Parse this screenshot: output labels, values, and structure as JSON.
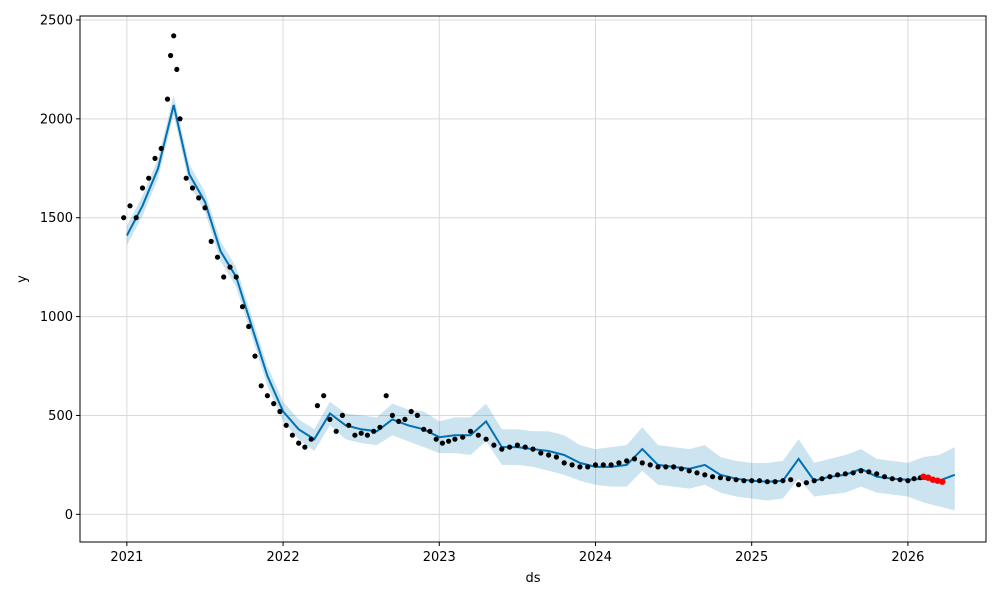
{
  "chart_data": {
    "type": "line",
    "xlabel": "ds",
    "ylabel": "y",
    "xlim": [
      2020.7,
      2026.5
    ],
    "ylim": [
      -140,
      2520
    ],
    "x_ticks": [
      2021,
      2022,
      2023,
      2024,
      2025,
      2026
    ],
    "x_tick_labels": [
      "2021",
      "2022",
      "2023",
      "2024",
      "2025",
      "2026"
    ],
    "y_ticks": [
      0,
      500,
      1000,
      1500,
      2000,
      2500
    ],
    "y_tick_labels": [
      "0",
      "500",
      "1000",
      "1500",
      "2000",
      "2500"
    ],
    "grid": true,
    "colors": {
      "forecast_line": "#0072B2",
      "uncertainty_band": "#0072B2",
      "observed_points": "#000000",
      "highlight_points": "#ff0000",
      "grid": "#d9d9d9"
    },
    "forecast": {
      "x": [
        2021.0,
        2021.1,
        2021.2,
        2021.3,
        2021.4,
        2021.5,
        2021.6,
        2021.7,
        2021.8,
        2021.9,
        2022.0,
        2022.1,
        2022.2,
        2022.3,
        2022.4,
        2022.5,
        2022.6,
        2022.7,
        2022.8,
        2022.9,
        2023.0,
        2023.1,
        2023.2,
        2023.3,
        2023.4,
        2023.5,
        2023.6,
        2023.7,
        2023.8,
        2023.9,
        2024.0,
        2024.1,
        2024.2,
        2024.3,
        2024.4,
        2024.5,
        2024.6,
        2024.7,
        2024.8,
        2024.9,
        2025.0,
        2025.1,
        2025.2,
        2025.3,
        2025.4,
        2025.5,
        2025.6,
        2025.7,
        2025.8,
        2025.9,
        2026.0,
        2026.1,
        2026.2,
        2026.3
      ],
      "yhat": [
        1410,
        1560,
        1750,
        2070,
        1720,
        1580,
        1330,
        1200,
        950,
        700,
        520,
        430,
        380,
        510,
        450,
        430,
        420,
        480,
        450,
        430,
        390,
        400,
        400,
        470,
        340,
        340,
        330,
        320,
        300,
        260,
        240,
        240,
        250,
        330,
        250,
        240,
        230,
        250,
        200,
        180,
        170,
        165,
        170,
        280,
        170,
        190,
        200,
        230,
        190,
        180,
        175,
        180,
        170,
        200
      ],
      "yhat_lower": [
        1360,
        1510,
        1700,
        2020,
        1670,
        1530,
        1280,
        1150,
        900,
        650,
        470,
        380,
        320,
        450,
        380,
        360,
        350,
        400,
        370,
        340,
        310,
        310,
        300,
        370,
        250,
        250,
        240,
        220,
        200,
        170,
        150,
        140,
        140,
        220,
        150,
        140,
        130,
        150,
        110,
        90,
        80,
        70,
        80,
        180,
        90,
        100,
        110,
        140,
        110,
        100,
        90,
        60,
        40,
        20
      ],
      "yhat_upper": [
        1460,
        1610,
        1800,
        2120,
        1770,
        1630,
        1380,
        1250,
        1000,
        750,
        570,
        480,
        430,
        570,
        510,
        500,
        490,
        560,
        530,
        520,
        470,
        490,
        490,
        560,
        430,
        430,
        420,
        420,
        400,
        350,
        330,
        340,
        350,
        440,
        350,
        340,
        330,
        350,
        290,
        270,
        260,
        260,
        270,
        380,
        260,
        280,
        300,
        330,
        280,
        270,
        260,
        290,
        300,
        340
      ]
    },
    "observed": {
      "x": [
        2020.98,
        2021.02,
        2021.06,
        2021.1,
        2021.14,
        2021.18,
        2021.22,
        2021.26,
        2021.28,
        2021.3,
        2021.32,
        2021.34,
        2021.38,
        2021.42,
        2021.46,
        2021.5,
        2021.54,
        2021.58,
        2021.62,
        2021.66,
        2021.7,
        2021.74,
        2021.78,
        2021.82,
        2021.86,
        2021.9,
        2021.94,
        2021.98,
        2022.02,
        2022.06,
        2022.1,
        2022.14,
        2022.18,
        2022.22,
        2022.26,
        2022.3,
        2022.34,
        2022.38,
        2022.42,
        2022.46,
        2022.5,
        2022.54,
        2022.58,
        2022.62,
        2022.66,
        2022.7,
        2022.74,
        2022.78,
        2022.82,
        2022.86,
        2022.9,
        2022.94,
        2022.98,
        2023.02,
        2023.06,
        2023.1,
        2023.15,
        2023.2,
        2023.25,
        2023.3,
        2023.35,
        2023.4,
        2023.45,
        2023.5,
        2023.55,
        2023.6,
        2023.65,
        2023.7,
        2023.75,
        2023.8,
        2023.85,
        2023.9,
        2023.95,
        2024.0,
        2024.05,
        2024.1,
        2024.15,
        2024.2,
        2024.25,
        2024.3,
        2024.35,
        2024.4,
        2024.45,
        2024.5,
        2024.55,
        2024.6,
        2024.65,
        2024.7,
        2024.75,
        2024.8,
        2024.85,
        2024.9,
        2024.95,
        2025.0,
        2025.05,
        2025.1,
        2025.15,
        2025.2,
        2025.25,
        2025.3,
        2025.35,
        2025.4,
        2025.45,
        2025.5,
        2025.55,
        2025.6,
        2025.65,
        2025.7,
        2025.75,
        2025.8,
        2025.85,
        2025.9,
        2025.95,
        2026.0,
        2026.04,
        2026.08
      ],
      "y": [
        1500,
        1560,
        1500,
        1650,
        1700,
        1800,
        1850,
        2100,
        2320,
        2420,
        2250,
        2000,
        1700,
        1650,
        1600,
        1550,
        1380,
        1300,
        1200,
        1250,
        1200,
        1050,
        950,
        800,
        650,
        600,
        560,
        520,
        450,
        400,
        360,
        340,
        380,
        550,
        600,
        480,
        420,
        500,
        450,
        400,
        410,
        400,
        420,
        440,
        600,
        500,
        470,
        480,
        520,
        500,
        430,
        420,
        380,
        360,
        370,
        380,
        390,
        420,
        400,
        380,
        350,
        330,
        340,
        350,
        340,
        330,
        310,
        300,
        290,
        260,
        250,
        240,
        240,
        250,
        250,
        250,
        260,
        270,
        280,
        260,
        250,
        240,
        240,
        240,
        230,
        220,
        210,
        200,
        190,
        185,
        180,
        175,
        170,
        170,
        170,
        165,
        165,
        170,
        175,
        150,
        160,
        170,
        180,
        190,
        200,
        205,
        210,
        220,
        215,
        205,
        190,
        180,
        175,
        170,
        180,
        185
      ]
    },
    "highlight": {
      "x": [
        2026.1,
        2026.13,
        2026.16,
        2026.19,
        2026.22
      ],
      "y": [
        190,
        185,
        175,
        170,
        165
      ]
    }
  }
}
